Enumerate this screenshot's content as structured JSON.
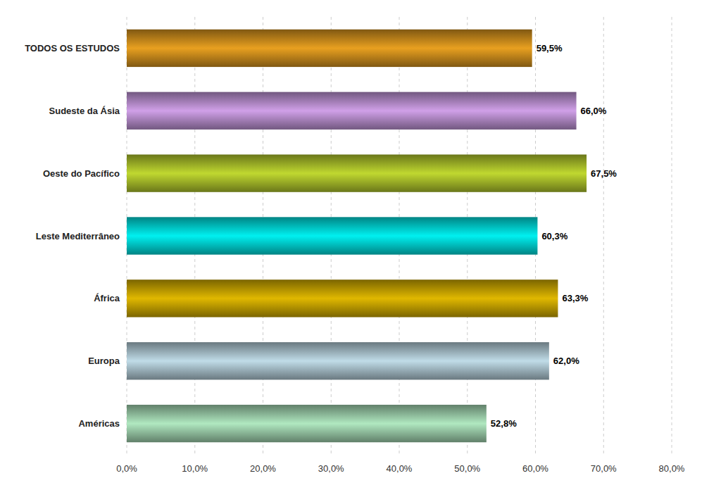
{
  "chart_data": {
    "type": "bar",
    "orientation": "horizontal",
    "categories": [
      "TODOS OS ESTUDOS",
      "Sudeste da Ásia",
      "Oeste do Pacífico",
      "Leste Mediterrâneo",
      "África",
      "Europa",
      "Américas"
    ],
    "values": [
      59.5,
      66.0,
      67.5,
      60.3,
      63.3,
      62.0,
      52.8
    ],
    "value_labels": [
      "59,5%",
      "66,0%",
      "67,5%",
      "60,3%",
      "63,3%",
      "62,0%",
      "52,8%"
    ],
    "colors": [
      "#e8a020",
      "#d0a0e8",
      "#c0d830",
      "#00f0f0",
      "#e0b800",
      "#c0dce8",
      "#b0e8c0"
    ],
    "xlim": [
      0,
      80
    ],
    "xticks": [
      {
        "value": 0,
        "label": "0,0%"
      },
      {
        "value": 10,
        "label": "10,0%"
      },
      {
        "value": 20,
        "label": "20,0%"
      },
      {
        "value": 30,
        "label": "30,0%"
      },
      {
        "value": 40,
        "label": "40,0%"
      },
      {
        "value": 50,
        "label": "50,0%"
      },
      {
        "value": 60,
        "label": "60,0%"
      },
      {
        "value": 70,
        "label": "70,0%"
      },
      {
        "value": 80,
        "label": "80,0%"
      }
    ],
    "grid": true,
    "data_labels": true
  }
}
